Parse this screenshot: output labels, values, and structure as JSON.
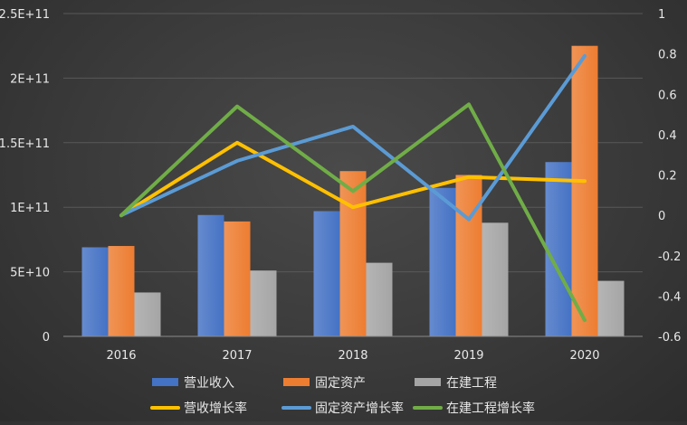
{
  "chart_data": {
    "type": "bar",
    "categories": [
      "2016",
      "2017",
      "2018",
      "2019",
      "2020"
    ],
    "series": [
      {
        "name": "营业收入",
        "kind": "bar",
        "axis": "left",
        "color": "#4472c4",
        "values": [
          69000000000,
          94000000000,
          97000000000,
          115000000000,
          135000000000
        ]
      },
      {
        "name": "固定资产",
        "kind": "bar",
        "axis": "left",
        "color": "#ed7d31",
        "values": [
          70000000000,
          89000000000,
          128000000000,
          125000000000,
          225000000000
        ]
      },
      {
        "name": "在建工程",
        "kind": "bar",
        "axis": "left",
        "color": "#a5a5a5",
        "values": [
          34000000000,
          51000000000,
          57000000000,
          88000000000,
          43000000000
        ]
      },
      {
        "name": "营收增长率",
        "kind": "line",
        "axis": "right",
        "color": "#ffc000",
        "values": [
          0,
          0.36,
          0.04,
          0.19,
          0.17
        ]
      },
      {
        "name": "固定资产增长率",
        "kind": "line",
        "axis": "right",
        "color": "#5b9bd5",
        "values": [
          0,
          0.27,
          0.44,
          -0.02,
          0.79
        ]
      },
      {
        "name": "在建工程增长率",
        "kind": "line",
        "axis": "right",
        "color": "#70ad47",
        "values": [
          0,
          0.54,
          0.12,
          0.55,
          -0.52
        ]
      }
    ],
    "y_left": {
      "min": 0,
      "max": 250000000000,
      "ticks": [
        {
          "value": 0,
          "label": "0"
        },
        {
          "value": 50000000000,
          "label": "5E+10"
        },
        {
          "value": 100000000000,
          "label": "1E+11"
        },
        {
          "value": 150000000000,
          "label": "1.5E+11"
        },
        {
          "value": 200000000000,
          "label": "2E+11"
        },
        {
          "value": 250000000000,
          "label": "2.5E+11"
        }
      ]
    },
    "y_right": {
      "min": -0.6,
      "max": 1,
      "ticks": [
        {
          "value": 1,
          "label": "1"
        },
        {
          "value": 0.8,
          "label": "0.8"
        },
        {
          "value": 0.6,
          "label": "0.6"
        },
        {
          "value": 0.4,
          "label": "0.4"
        },
        {
          "value": 0.2,
          "label": "0.2"
        },
        {
          "value": 0,
          "label": "0"
        },
        {
          "value": -0.2,
          "label": "-0.2"
        },
        {
          "value": -0.4,
          "label": "-0.4"
        },
        {
          "value": -0.6,
          "label": "-0.6"
        }
      ]
    },
    "grid": true,
    "legend_position": "bottom",
    "background_color": "#3d3d3d",
    "grid_color": "#595959"
  }
}
